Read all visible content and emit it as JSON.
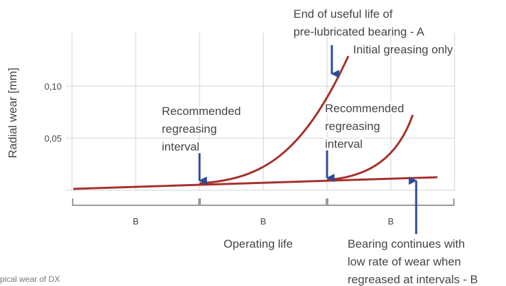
{
  "y_axis": {
    "label": "Radial wear [mm]",
    "ticks": [
      "0,10",
      "0,05"
    ]
  },
  "x_axis": {
    "label": "Operating life",
    "segments": [
      "B",
      "B",
      "B"
    ]
  },
  "annotations": {
    "end_of_life": [
      "End of useful life of",
      "pre-lubricated bearing - A"
    ],
    "initial": "Initial greasing only",
    "regrease_1": [
      "Recommended",
      "regreasing",
      "interval"
    ],
    "regrease_2": [
      "Recommended",
      "regreasing",
      "interval"
    ],
    "continues": [
      "Bearing continues with",
      "low rate of wear when",
      "regreased at intervals - B"
    ]
  },
  "caption": "pical wear of DX"
}
